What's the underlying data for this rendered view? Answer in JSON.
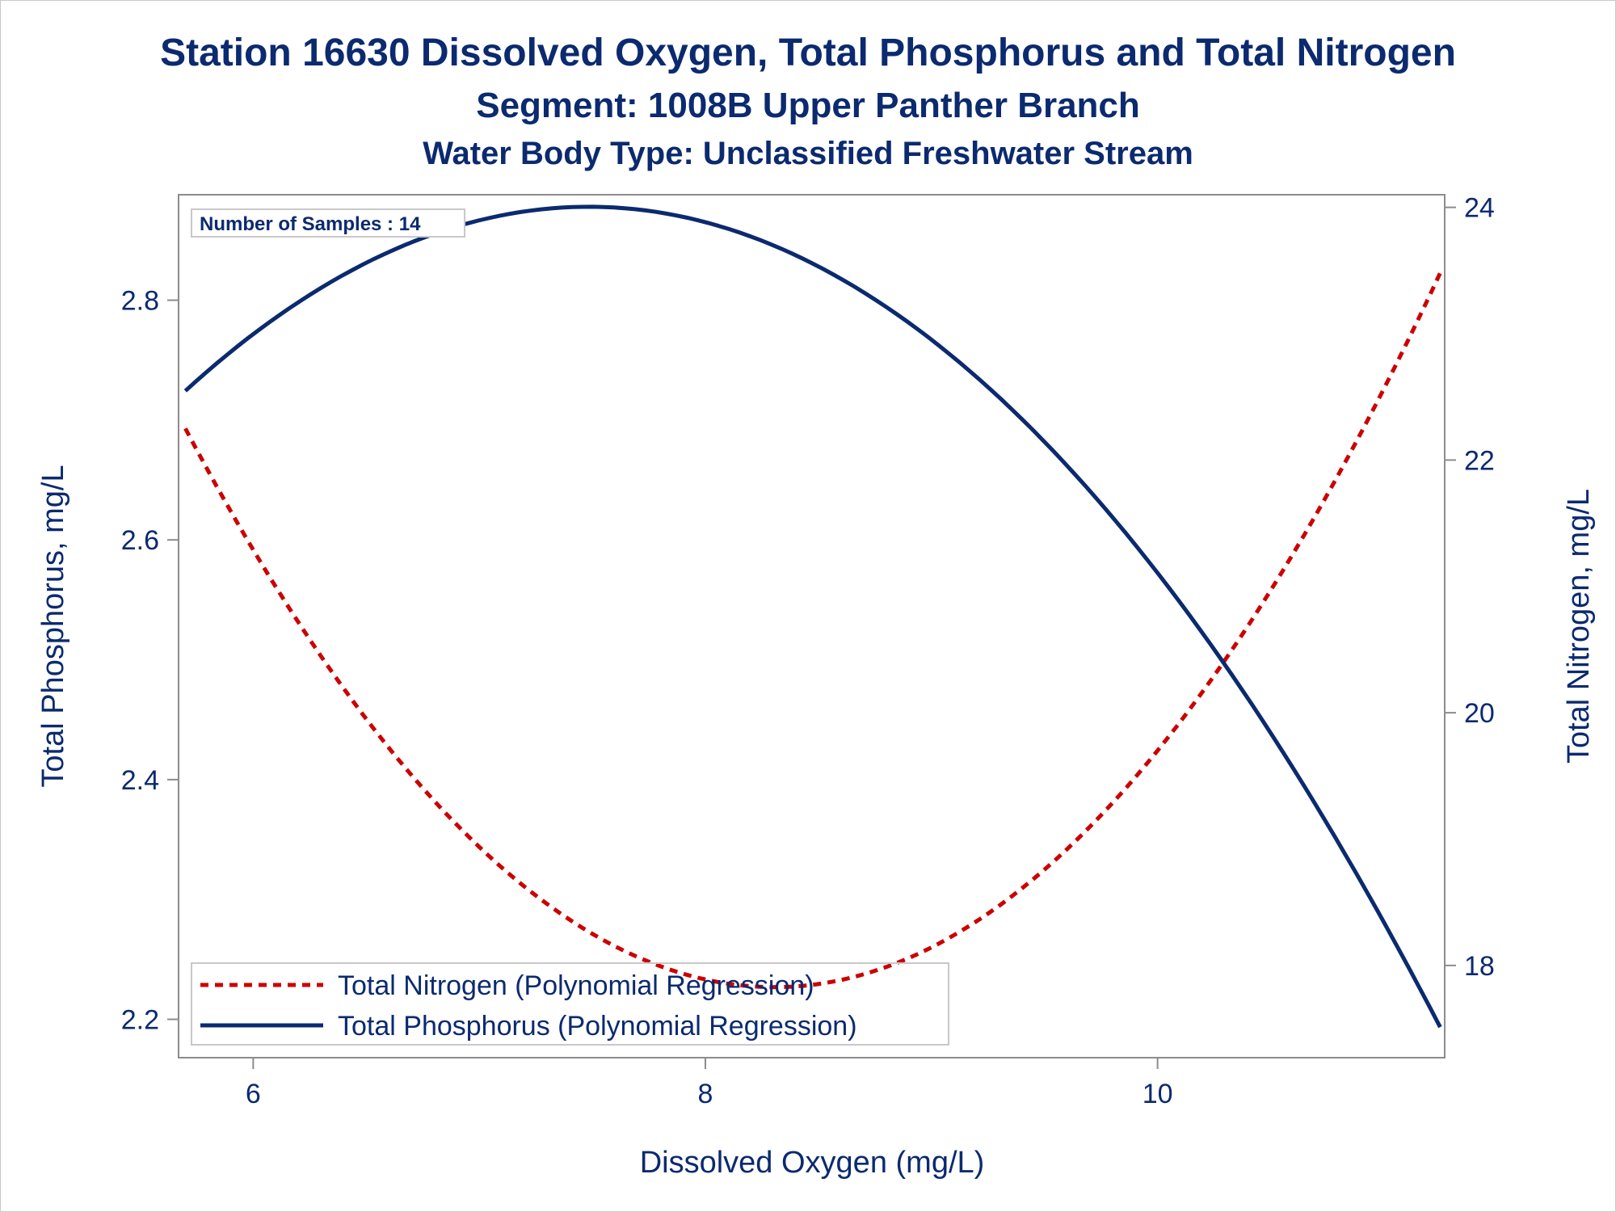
{
  "titles": [
    "Station 16630  Dissolved Oxygen, Total Phosphorus and Total Nitrogen",
    "Segment: 1008B  Upper Panther Branch",
    "Water Body Type: Unclassified Freshwater Stream"
  ],
  "inset": "Number of Samples : 14",
  "chart_data": {
    "type": "line",
    "xlabel": "Dissolved Oxygen (mg/L)",
    "ylabel": "Total Phosphorus, mg/L",
    "y2label": "Total Nitrogen, mg/L",
    "xlim": [
      5.67,
      11.27
    ],
    "ylim": [
      2.168,
      2.888
    ],
    "y2lim": [
      17.27,
      24.1
    ],
    "x_ticks": [
      6,
      8,
      10
    ],
    "y_ticks": [
      2.2,
      2.4,
      2.6,
      2.8
    ],
    "y2_ticks": [
      18,
      20,
      22,
      24
    ],
    "grid": false,
    "legend_position": "bottom-left",
    "series": [
      {
        "name": "Total Nitrogen (Polynomial Regression)",
        "axis": "y2",
        "style": "dashed",
        "color": "#cc0000",
        "fit": "quadratic",
        "x": [
          5.7,
          6.0,
          6.5,
          7.0,
          7.5,
          8.0,
          8.3,
          8.5,
          9.0,
          9.5,
          10.0,
          10.5,
          11.0,
          11.25
        ],
        "values": [
          22.0,
          21.3,
          20.2,
          19.2,
          18.5,
          17.7,
          17.46,
          17.55,
          18.2,
          18.9,
          19.9,
          21.0,
          22.5,
          23.45
        ]
      },
      {
        "name": "Total Phosphorus (Polynomial Regression)",
        "axis": "y",
        "style": "solid",
        "color": "#0b2a6f",
        "fit": "quadratic",
        "x": [
          5.7,
          6.0,
          6.5,
          7.0,
          7.5,
          8.0,
          8.5,
          9.0,
          9.5,
          10.0,
          10.5,
          11.0,
          11.25
        ],
        "values": [
          2.72,
          2.777,
          2.834,
          2.866,
          2.876,
          2.866,
          2.826,
          2.76,
          2.678,
          2.577,
          2.451,
          2.294,
          2.175
        ]
      }
    ]
  }
}
